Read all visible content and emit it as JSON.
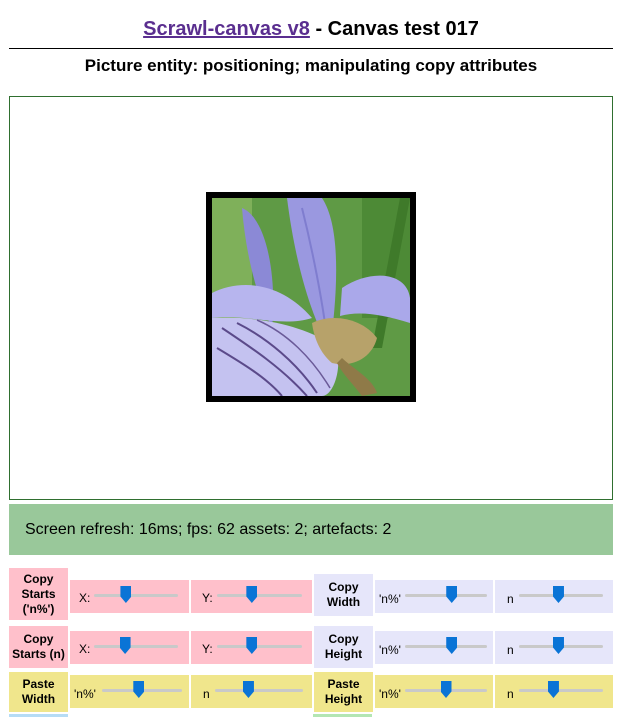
{
  "header": {
    "link_text": "Scrawl-canvas v8",
    "title_rest": " - Canvas test 017",
    "subtitle": "Picture entity: positioning; manipulating copy attributes"
  },
  "status": {
    "text": "Screen refresh: 16ms; fps: 62 assets: 2; artefacts: 2"
  },
  "controls": {
    "copy_starts_pct": {
      "label_line1": "Copy",
      "label_line2": "Starts",
      "label_line3": "('n%')",
      "x_label": "X:",
      "y_label": "Y:",
      "x_value": 0.38,
      "y_value": 0.41
    },
    "copy_starts_n": {
      "label_line1": "Copy",
      "label_line2": "Starts (n)",
      "x_label": "X:",
      "y_label": "Y:",
      "x_value": 0.37,
      "y_value": 0.41
    },
    "copy_width": {
      "label_line1": "Copy",
      "label_line2": "Width",
      "pct_label": "'n%'",
      "n_label": "n",
      "pct_value": 0.57,
      "n_value": 0.47
    },
    "copy_height": {
      "label_line1": "Copy",
      "label_line2": "Height",
      "pct_label": "'n%'",
      "n_label": "n",
      "pct_value": 0.57,
      "n_value": 0.47
    },
    "paste_width": {
      "label_line1": "Paste",
      "label_line2": "Width",
      "pct_label": "'n%'",
      "n_label": "n",
      "pct_value": 0.46,
      "n_value": 0.38
    },
    "paste_height": {
      "label_line1": "Paste",
      "label_line2": "Height",
      "pct_label": "'n%'",
      "n_label": "n",
      "pct_value": 0.5,
      "n_value": 0.41
    }
  },
  "colors": {
    "copy_starts_bg": "#ffc0cb",
    "copy_size_bg": "#e6e6fa",
    "paste_bg": "#f0e68c",
    "status_bg": "#99c89a",
    "slider_thumb": "#0a74d6"
  },
  "canvas": {
    "picture_subject": "iris-flower-image"
  }
}
